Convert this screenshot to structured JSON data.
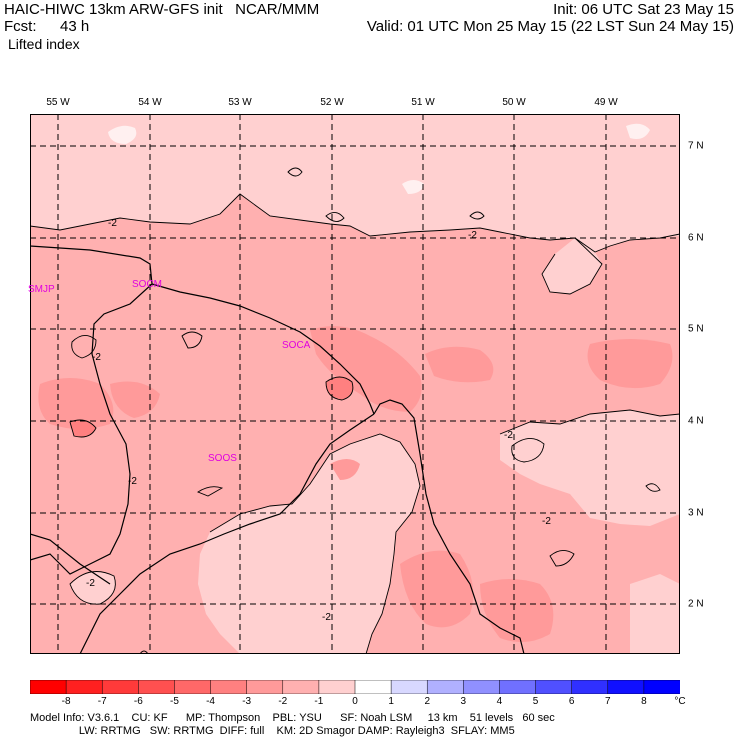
{
  "header": {
    "title_left": "HAIC-HIWC 13km ARW-GFS init   NCAR/MMM",
    "fcst_label": "Fcst:",
    "fcst_value": "43 h",
    "init": "Init: 06 UTC Sat 23 May 15",
    "valid": "Valid: 01 UTC Mon 25 May 15 (22 LST Sun 24 May 15)",
    "field": "Lifted index"
  },
  "map": {
    "lon_labels": [
      "55 W",
      "54 W",
      "53 W",
      "52 W",
      "51 W",
      "50 W",
      "49 W"
    ],
    "lat_labels": [
      "7 N",
      "6 N",
      "5 N",
      "4 N",
      "3 N",
      "2 N"
    ],
    "stations": [
      "SMJP",
      "SOCM",
      "SOCA",
      "SOOS"
    ],
    "contour_labels": [
      "-2",
      "-2",
      "-2",
      "-2",
      "-2",
      "-2",
      "-2",
      "-2"
    ],
    "colors": {
      "light_pink": "#ffd0d0",
      "pink": "#ffb0b0",
      "mid_pink": "#ff9a9a",
      "darker": "#ff8080",
      "very_light": "#fff0f0"
    }
  },
  "colorbar": {
    "labels": [
      "-8",
      "-7",
      "-6",
      "-5",
      "-4",
      "-3",
      "-2",
      "-1",
      "0",
      "1",
      "2",
      "3",
      "4",
      "5",
      "6",
      "7",
      "8"
    ],
    "unit": "°C",
    "colors": [
      "#ff0000",
      "#ff2020",
      "#ff3a3a",
      "#ff5050",
      "#ff6868",
      "#ff8080",
      "#ff9a9a",
      "#ffb0b0",
      "#ffd0d0",
      "#ffffff",
      "#d8d8ff",
      "#b0b0ff",
      "#9090ff",
      "#7070ff",
      "#5050ff",
      "#3030ff",
      "#1010ff",
      "#0000ff"
    ]
  },
  "footer": {
    "line1": "Model Info: V3.6.1    CU: KF      MP: Thompson    PBL: YSU      SF: Noah LSM     13 km    51 levels   60 sec",
    "line2": "                LW: RRTMG   SW: RRTMG  DIFF: full    KM: 2D Smagor DAMP: Rayleigh3  SFLAY: MM5"
  }
}
